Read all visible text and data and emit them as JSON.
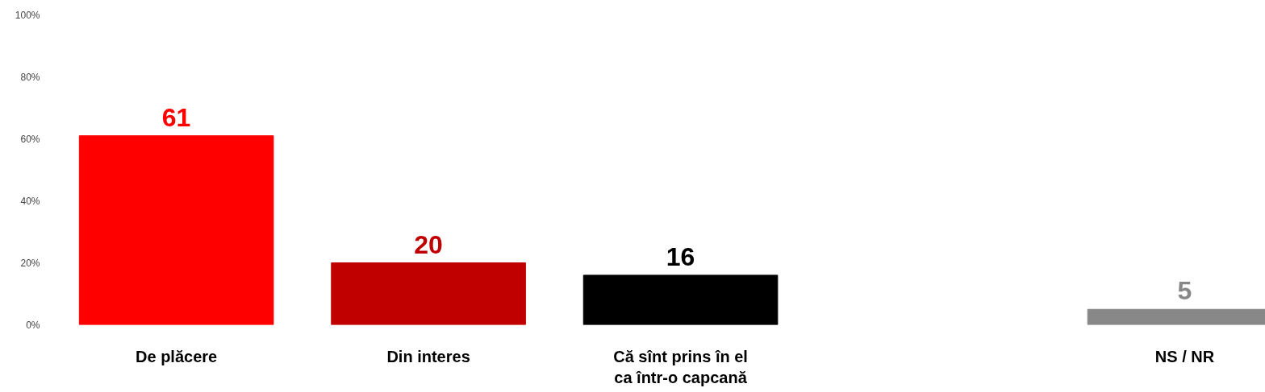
{
  "chart_data": {
    "type": "bar",
    "categories": [
      "De plăcere",
      "Din interes",
      "Că sînt prins în el\nca într-o capcană",
      null,
      "NS / NR"
    ],
    "values": [
      61,
      20,
      16,
      null,
      5
    ],
    "colors": [
      "#ff0000",
      "#c00000",
      "#000000",
      null,
      "#888888"
    ],
    "data_labels": true,
    "ylim": [
      0,
      100
    ],
    "yticks": [
      {
        "value": 0,
        "label": "0%"
      },
      {
        "value": 20,
        "label": "20%"
      },
      {
        "value": 40,
        "label": "40%"
      },
      {
        "value": 60,
        "label": "60%"
      },
      {
        "value": 80,
        "label": "80%"
      },
      {
        "value": 100,
        "label": "100%"
      }
    ],
    "grid": false
  }
}
